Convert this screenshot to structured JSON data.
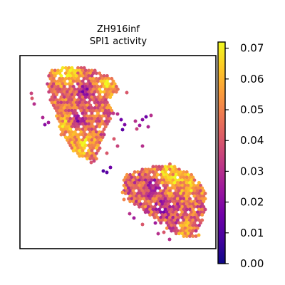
{
  "chart_data": {
    "type": "scatter",
    "title_lines": [
      "ZH916inf",
      "SPI1 activity"
    ],
    "xlabel": "",
    "ylabel": "",
    "axis_ticks_visible": false,
    "grid": false,
    "colormap": "plasma",
    "colorbar": {
      "position": "right",
      "range": [
        0.0,
        0.072
      ],
      "ticks": [
        0.0,
        0.01,
        0.02,
        0.03,
        0.04,
        0.05,
        0.06,
        0.07
      ],
      "tick_labels": [
        "0.00",
        "0.01",
        "0.02",
        "0.03",
        "0.04",
        "0.05",
        "0.06",
        "0.07"
      ]
    },
    "spot_regions": [
      {
        "id": "upper-left-tissue",
        "approx_mean_activity": 0.045,
        "activity_range": [
          0.02,
          0.07
        ],
        "note": "high activity hotspots near top and lower-left"
      },
      {
        "id": "lower-right-tissue",
        "approx_mean_activity": 0.042,
        "activity_range": [
          0.015,
          0.07
        ],
        "note": "high activity in upper-right part"
      }
    ]
  },
  "colors": {
    "plasma_stops": [
      "#0d0887",
      "#46039f",
      "#7201a8",
      "#9c179e",
      "#bd3786",
      "#d8576b",
      "#ed7953",
      "#fb9f3a",
      "#fdca26",
      "#f0f921"
    ]
  }
}
